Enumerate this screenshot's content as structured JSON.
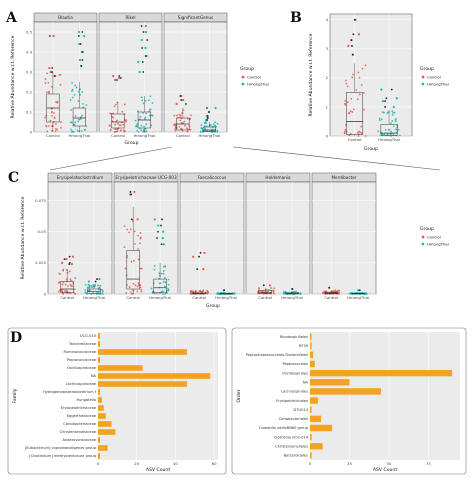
{
  "labels": {
    "A": "A",
    "B": "B",
    "C": "C",
    "D": "D"
  },
  "colors": {
    "control": "#e8584a",
    "hmong": "#19b5b5",
    "bar": "#f4a21f",
    "panel_bg": "#ebebeb",
    "grid": "#ffffff"
  },
  "legend": {
    "title": "Group",
    "items": [
      "Control",
      "HmongThai"
    ]
  },
  "chart_data": [
    {
      "id": "A",
      "type": "box+jitter",
      "facets": [
        "Blautia",
        "Rikel",
        "SignificantGenus"
      ],
      "categories": [
        "Control",
        "HmongThai"
      ],
      "xlabel": "Group",
      "ylabel": "Relative Abundance w.r.t. Reference",
      "ylim": [
        0,
        0.55
      ],
      "yticks": [
        0,
        0.1,
        0.2,
        0.3,
        0.4,
        0.5
      ],
      "boxes": [
        [
          {
            "q1": 0.05,
            "med": 0.12,
            "q3": 0.19,
            "lo": 0,
            "hi": 0.3
          },
          {
            "q1": 0.03,
            "med": 0.07,
            "q3": 0.12,
            "lo": 0,
            "hi": 0.25
          }
        ],
        [
          {
            "q1": 0.02,
            "med": 0.05,
            "q3": 0.09,
            "lo": 0,
            "hi": 0.15
          },
          {
            "q1": 0.02,
            "med": 0.06,
            "q3": 0.1,
            "lo": 0,
            "hi": 0.18
          }
        ],
        [
          {
            "q1": 0.01,
            "med": 0.04,
            "q3": 0.07,
            "lo": 0,
            "hi": 0.12
          },
          {
            "q1": 0.003,
            "med": 0.01,
            "q3": 0.025,
            "lo": 0,
            "hi": 0.05
          }
        ]
      ],
      "outliers": [
        [
          [
            0.48,
            0.3,
            0.32,
            0.28
          ],
          [
            0.5,
            0.48,
            0.44,
            0.4,
            0.36,
            0.33
          ]
        ],
        [
          [
            0.28,
            0.27,
            0.26
          ],
          [
            0.53,
            0.5,
            0.46,
            0.42,
            0.38,
            0.35,
            0.3
          ]
        ],
        [
          [
            0.18,
            0.16,
            0.14
          ],
          [
            0.12,
            0.1,
            0.08,
            0.07,
            0.06
          ]
        ]
      ]
    },
    {
      "id": "B",
      "type": "box+jitter",
      "categories": [
        "Control",
        "HmongThai"
      ],
      "xlabel": "Group",
      "ylabel": "Relative Abundance w.r.t. Reference",
      "ylim": [
        0,
        4.2
      ],
      "yticks": [
        0,
        1,
        2,
        3,
        4
      ],
      "boxes": [
        {
          "q1": 0.05,
          "med": 0.5,
          "q3": 1.5,
          "lo": 0,
          "hi": 2.5
        },
        {
          "q1": 0.02,
          "med": 0.1,
          "q3": 0.4,
          "lo": 0,
          "hi": 0.9
        }
      ],
      "outliers": [
        [
          4.0,
          3.5,
          3.3,
          3.1,
          2.8
        ],
        [
          1.6,
          1.3,
          1.2,
          1.0
        ]
      ]
    },
    {
      "id": "C",
      "type": "box+jitter",
      "facets": [
        "Erysipelatoclostridium",
        "Erysipelotrichaceae UCG-003",
        "Faecalicoccus",
        "Holdemania",
        "Merdibacter"
      ],
      "categories": [
        "Control",
        "HmongThai"
      ],
      "xlabel": "Group",
      "ylabel": "Relative Abundance w.r.t. Reference",
      "ylim": [
        0,
        0.09
      ],
      "yticks": [
        0,
        0.025,
        0.05,
        0.075
      ],
      "boxes": [
        [
          {
            "q1": 0.001,
            "med": 0.004,
            "q3": 0.01,
            "lo": 0,
            "hi": 0.02
          },
          {
            "q1": 0.0005,
            "med": 0.002,
            "q3": 0.004,
            "lo": 0,
            "hi": 0.008
          }
        ],
        [
          {
            "q1": 0.004,
            "med": 0.012,
            "q3": 0.035,
            "lo": 0,
            "hi": 0.07
          },
          {
            "q1": 0.001,
            "med": 0.005,
            "q3": 0.012,
            "lo": 0,
            "hi": 0.025
          }
        ],
        [
          {
            "q1": 0,
            "med": 0.0005,
            "q3": 0.0015,
            "lo": 0,
            "hi": 0.003
          },
          {
            "q1": 0,
            "med": 0.0002,
            "q3": 0.0006,
            "lo": 0,
            "hi": 0.001
          }
        ],
        [
          {
            "q1": 0.0005,
            "med": 0.001,
            "q3": 0.003,
            "lo": 0,
            "hi": 0.005
          },
          {
            "q1": 0,
            "med": 0.0003,
            "q3": 0.001,
            "lo": 0,
            "hi": 0.002
          }
        ],
        [
          {
            "q1": 0.0002,
            "med": 0.0008,
            "q3": 0.0015,
            "lo": 0,
            "hi": 0.003
          },
          {
            "q1": 0,
            "med": 0.0002,
            "q3": 0.0006,
            "lo": 0,
            "hi": 0.001
          }
        ]
      ],
      "outliers": [
        [
          [
            0.03,
            0.028,
            0.025,
            0.024
          ],
          [
            0.012,
            0.01
          ]
        ],
        [
          [
            0.082,
            0.08,
            0.06
          ],
          [
            0.06,
            0.055,
            0.05,
            0.045,
            0.04
          ]
        ],
        [
          [
            0.033,
            0.03,
            0.02
          ],
          [
            0.003
          ]
        ],
        [
          [
            0.007
          ],
          [
            0.004
          ]
        ],
        [
          [
            0.005
          ],
          [
            0.003
          ]
        ]
      ]
    },
    {
      "id": "D-left",
      "type": "bar",
      "orientation": "horizontal",
      "xlabel": "ASV Count",
      "ylabel": "Family",
      "xlim": [
        0,
        62
      ],
      "xticks": [
        0,
        20,
        40,
        60
      ],
      "categories": [
        "UCG-010",
        "Tannerellaceae",
        "Ruminococcaceae",
        "Peptococcaceae",
        "Oscillospiraceae",
        "NA",
        "Lachnospiraceae",
        "Hydrogenoanaerobacterium f",
        "Hungatella",
        "Erysipelotrichaceae",
        "Eggerthellaceae",
        "Coriobacteriaceae",
        "Christensenellaceae",
        "Anaerovoracaceae",
        "[Eubacterium] coprostanoligenes group",
        "[Clostridium] methylpentosum group"
      ],
      "values": [
        1,
        1,
        46,
        1,
        23,
        58,
        46,
        1,
        2,
        3,
        4,
        7,
        9,
        1,
        5,
        1
      ]
    },
    {
      "id": "D-right",
      "type": "bar",
      "orientation": "horizontal",
      "xlabel": "ASV Count",
      "ylabel": "Order",
      "xlim": [
        0,
        95
      ],
      "xticks": [
        0,
        25,
        50,
        75
      ],
      "categories": [
        "Rhodospirillales",
        "RF39",
        "Peptostreptococcales-Tissierellales",
        "Peptococcales",
        "Oscillospirales",
        "NA",
        "Lachnospirales",
        "Erysipelotrichales",
        "DTU014",
        "Coriobacteriales",
        "Clostridia vadinBB60 group",
        "Clostridia UCG-014",
        "Christensenellales",
        "Bacteroidales"
      ],
      "values": [
        1,
        1,
        2,
        3,
        90,
        25,
        45,
        5,
        1,
        7,
        14,
        1,
        8,
        1
      ]
    }
  ]
}
